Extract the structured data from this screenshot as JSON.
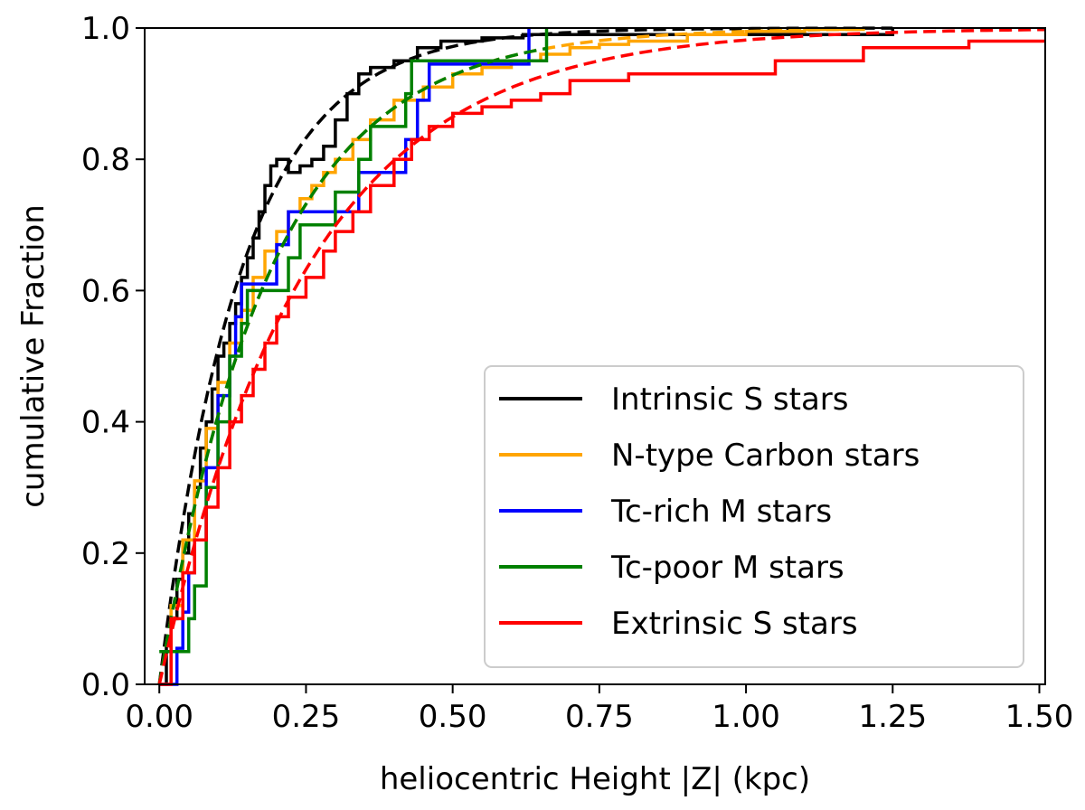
{
  "chart_data": {
    "type": "line",
    "xlabel": "heliocentric Height |Z| (kpc)",
    "ylabel": "cumulative Fraction",
    "xlim": [
      -0.025,
      1.51
    ],
    "ylim": [
      0.0,
      1.0
    ],
    "xticks": [
      "0.00",
      "0.25",
      "0.50",
      "0.75",
      "1.00",
      "1.25",
      "1.50"
    ],
    "xtick_values": [
      0.0,
      0.25,
      0.5,
      0.75,
      1.0,
      1.25,
      1.5
    ],
    "yticks": [
      "0.0",
      "0.2",
      "0.4",
      "0.6",
      "0.8",
      "1.0"
    ],
    "ytick_values": [
      0.0,
      0.2,
      0.4,
      0.6,
      0.8,
      1.0
    ],
    "grid": false,
    "legend_position": "lower-right",
    "legend": [
      {
        "label": "Intrinsic S stars",
        "color": "#000000"
      },
      {
        "label": "N-type Carbon stars",
        "color": "#FFA500"
      },
      {
        "label": "Tc-rich M stars",
        "color": "#0000FF"
      },
      {
        "label": "Tc-poor M stars",
        "color": "#008000"
      },
      {
        "label": "Extrinsic S stars",
        "color": "#FF0000"
      }
    ],
    "series": [
      {
        "name": "Intrinsic S stars",
        "color": "#000000",
        "style": "step",
        "x": [
          0.0,
          0.012,
          0.02,
          0.03,
          0.04,
          0.05,
          0.06,
          0.07,
          0.08,
          0.09,
          0.1,
          0.11,
          0.12,
          0.13,
          0.14,
          0.15,
          0.16,
          0.17,
          0.18,
          0.19,
          0.2,
          0.22,
          0.24,
          0.26,
          0.28,
          0.3,
          0.32,
          0.34,
          0.36,
          0.4,
          0.44,
          0.48,
          0.55,
          0.62,
          0.8,
          1.0,
          1.25
        ],
        "y": [
          0.0,
          0.06,
          0.1,
          0.16,
          0.2,
          0.26,
          0.3,
          0.36,
          0.4,
          0.45,
          0.5,
          0.52,
          0.55,
          0.58,
          0.62,
          0.65,
          0.68,
          0.72,
          0.76,
          0.79,
          0.8,
          0.78,
          0.79,
          0.8,
          0.82,
          0.86,
          0.9,
          0.93,
          0.94,
          0.95,
          0.97,
          0.98,
          0.985,
          0.99,
          0.99,
          0.99,
          1.0
        ]
      },
      {
        "name": "Intrinsic S stars fit",
        "color": "#000000",
        "style": "dashed",
        "fit_scale": 0.14,
        "fit_xmax": 1.25
      },
      {
        "name": "N-type Carbon stars",
        "color": "#FFA500",
        "style": "step",
        "x": [
          0.0,
          0.02,
          0.04,
          0.06,
          0.08,
          0.1,
          0.12,
          0.14,
          0.16,
          0.18,
          0.2,
          0.22,
          0.24,
          0.26,
          0.28,
          0.3,
          0.33,
          0.36,
          0.4,
          0.45,
          0.5,
          0.55,
          0.6,
          0.65,
          0.7,
          0.75,
          0.8,
          0.9,
          1.0,
          1.1,
          1.2
        ],
        "y": [
          0.0,
          0.12,
          0.22,
          0.31,
          0.39,
          0.46,
          0.52,
          0.57,
          0.62,
          0.66,
          0.69,
          0.72,
          0.74,
          0.76,
          0.78,
          0.8,
          0.83,
          0.86,
          0.89,
          0.91,
          0.93,
          0.94,
          0.95,
          0.96,
          0.97,
          0.975,
          0.98,
          0.99,
          0.995,
          0.998,
          1.0
        ]
      },
      {
        "name": "N-type Carbon stars fit",
        "color": "#FFA500",
        "style": "dashed",
        "fit_scale": 0.19,
        "fit_xmax": 1.2
      },
      {
        "name": "Tc-rich M stars",
        "color": "#0000FF",
        "style": "step",
        "x": [
          0.0,
          0.03,
          0.04,
          0.05,
          0.06,
          0.08,
          0.1,
          0.12,
          0.13,
          0.14,
          0.15,
          0.2,
          0.22,
          0.28,
          0.34,
          0.42,
          0.44,
          0.46,
          0.63
        ],
        "y": [
          0.0,
          0.055,
          0.11,
          0.17,
          0.22,
          0.33,
          0.44,
          0.5,
          0.56,
          0.61,
          0.61,
          0.67,
          0.72,
          0.72,
          0.78,
          0.83,
          0.89,
          0.945,
          1.0
        ]
      },
      {
        "name": "Tc-poor M stars",
        "color": "#008000",
        "style": "step",
        "x": [
          0.0,
          0.05,
          0.06,
          0.08,
          0.1,
          0.12,
          0.14,
          0.15,
          0.16,
          0.2,
          0.22,
          0.24,
          0.26,
          0.3,
          0.34,
          0.36,
          0.4,
          0.42,
          0.43,
          0.5,
          0.6,
          0.66
        ],
        "y": [
          0.05,
          0.1,
          0.15,
          0.3,
          0.4,
          0.5,
          0.55,
          0.6,
          0.6,
          0.6,
          0.65,
          0.7,
          0.7,
          0.75,
          0.8,
          0.85,
          0.85,
          0.9,
          0.95,
          0.95,
          0.95,
          1.0
        ]
      },
      {
        "name": "Tc-poor M stars fit",
        "color": "#008000",
        "style": "dashed",
        "fit_scale": 0.19,
        "fit_xmax": 0.66
      },
      {
        "name": "Extrinsic S stars",
        "color": "#FF0000",
        "style": "step",
        "x": [
          0.0,
          0.02,
          0.04,
          0.06,
          0.08,
          0.1,
          0.12,
          0.14,
          0.16,
          0.18,
          0.2,
          0.22,
          0.25,
          0.28,
          0.3,
          0.33,
          0.36,
          0.4,
          0.43,
          0.46,
          0.5,
          0.55,
          0.6,
          0.65,
          0.7,
          0.8,
          0.9,
          1.05,
          1.2,
          1.38,
          1.51
        ],
        "y": [
          0.0,
          0.1,
          0.17,
          0.22,
          0.27,
          0.33,
          0.4,
          0.44,
          0.48,
          0.52,
          0.56,
          0.59,
          0.62,
          0.66,
          0.69,
          0.72,
          0.76,
          0.8,
          0.83,
          0.85,
          0.87,
          0.88,
          0.89,
          0.9,
          0.92,
          0.93,
          0.93,
          0.95,
          0.97,
          0.98,
          0.98
        ]
      },
      {
        "name": "Extrinsic S stars fit",
        "color": "#FF0000",
        "style": "dashed",
        "fit_scale": 0.25,
        "fit_xmax": 1.51
      }
    ]
  }
}
